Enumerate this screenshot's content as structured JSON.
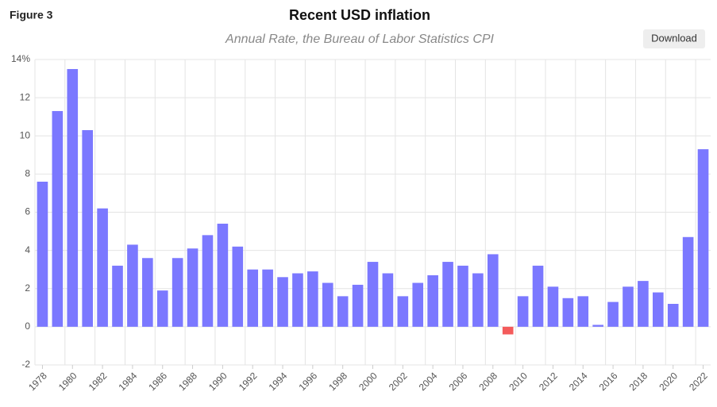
{
  "figure_label": "Figure 3",
  "button": "Download",
  "chart_data": {
    "type": "bar",
    "title": "Recent USD inflation",
    "subtitle": "Annual Rate, the Bureau of Labor Statistics CPI",
    "categories": [
      "1978",
      null,
      "1980",
      null,
      "1982",
      null,
      "1984",
      null,
      "1986",
      null,
      "1988",
      null,
      "1990",
      null,
      "1992",
      null,
      "1994",
      null,
      "1996",
      null,
      "1998",
      null,
      "2000",
      null,
      "2002",
      null,
      "2004",
      null,
      "2006",
      null,
      "2008",
      null,
      "2010",
      null,
      "2012",
      null,
      "2014",
      null,
      "2016",
      null,
      "2018",
      null,
      "2020",
      null,
      "2022"
    ],
    "values": [
      7.6,
      11.3,
      13.5,
      10.3,
      6.2,
      3.2,
      4.3,
      3.6,
      1.9,
      3.6,
      4.1,
      4.8,
      5.4,
      4.2,
      3.0,
      3.0,
      2.6,
      2.8,
      2.9,
      2.3,
      1.6,
      2.2,
      3.4,
      2.8,
      1.6,
      2.3,
      2.7,
      3.4,
      3.2,
      2.8,
      3.8,
      -0.4,
      1.6,
      3.2,
      2.1,
      1.5,
      1.6,
      0.1,
      1.3,
      2.1,
      2.4,
      1.8,
      1.2,
      4.7,
      9.3
    ],
    "color": "#7b78ff",
    "negative_color": "#f45b5b",
    "ylim": [
      -2,
      14
    ],
    "yticks": [
      -2,
      0,
      2,
      4,
      6,
      8,
      10,
      12,
      {
        "value": 14,
        "label": "14%"
      }
    ],
    "grid": true
  }
}
